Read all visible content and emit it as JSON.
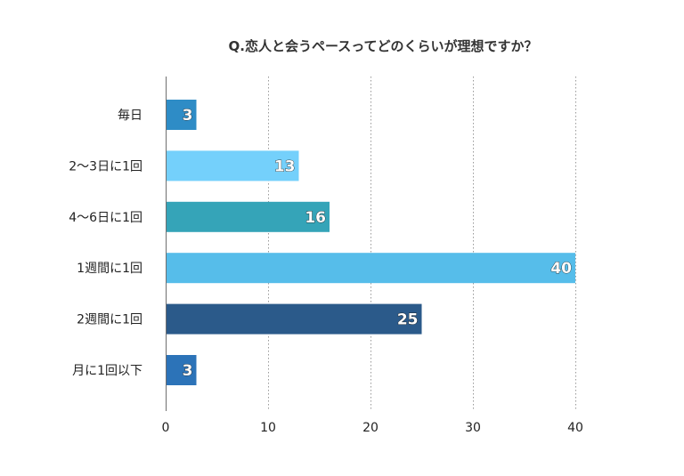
{
  "chart_data": {
    "type": "bar",
    "orientation": "horizontal",
    "title": "Q.恋人と会うペースってどのくらいが理想ですか？",
    "categories": [
      "毎日",
      "2〜3日に1回",
      "4〜6日に1回",
      "1週間に1回",
      "2週間に1回",
      "月に1回以下"
    ],
    "values": [
      3,
      13,
      16,
      40,
      25,
      3
    ],
    "value_labels": [
      "3",
      "13",
      "16",
      "40",
      "25",
      "3"
    ],
    "bar_colors": [
      "#2e8cc6",
      "#74d0fb",
      "#35a4b8",
      "#56bdea",
      "#2b5a8a",
      "#2c73b8"
    ],
    "xlabel": "",
    "ylabel": "",
    "xlim": [
      0,
      40
    ],
    "xticks": [
      0,
      10,
      20,
      30,
      40
    ],
    "xtick_labels": [
      "0",
      "10",
      "20",
      "30",
      "40"
    ],
    "grid": true,
    "legend": "none"
  }
}
